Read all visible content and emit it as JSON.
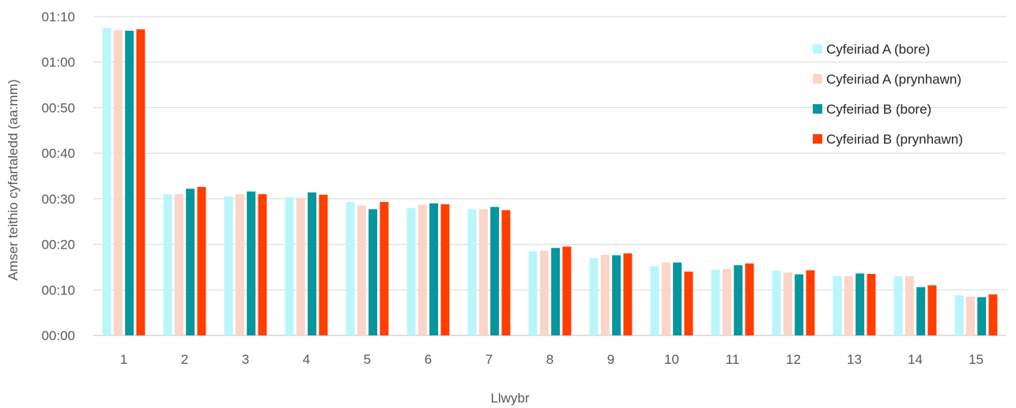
{
  "chart_data": {
    "type": "bar",
    "title": "",
    "xlabel": "Llwybr",
    "ylabel": "Amser teithio cyfartaledd (aa:mm)",
    "y_unit": "minutes",
    "ylim": [
      0,
      70
    ],
    "y_ticks": [
      0,
      10,
      20,
      30,
      40,
      50,
      60,
      70
    ],
    "y_tick_labels": [
      "00:00",
      "00:10",
      "00:20",
      "00:30",
      "00:40",
      "00:50",
      "01:00",
      "01:10"
    ],
    "grid": true,
    "legend_position": "right",
    "categories": [
      "1",
      "2",
      "3",
      "4",
      "5",
      "6",
      "7",
      "8",
      "9",
      "10",
      "11",
      "12",
      "13",
      "14",
      "15"
    ],
    "series": [
      {
        "name": "Cyfeiriad A (bore)",
        "color": "#B9F6F9",
        "values": [
          67.5,
          31,
          30.5,
          30.3,
          29.3,
          28,
          27.7,
          18.5,
          17,
          15.2,
          14.4,
          14.2,
          13.1,
          13,
          8.8
        ]
      },
      {
        "name": "Cyfeiriad A (prynhawn)",
        "color": "#FAD5C8",
        "values": [
          67,
          31,
          31,
          30.2,
          28.5,
          28.7,
          27.7,
          18.6,
          17.7,
          16,
          14.6,
          13.8,
          13,
          13,
          8.5
        ]
      },
      {
        "name": "Cyfeiriad B (bore)",
        "color": "#07969E",
        "values": [
          66.9,
          32.2,
          31.6,
          31.4,
          27.7,
          29,
          28.2,
          19.2,
          17.6,
          16,
          15.4,
          13.4,
          13.6,
          10.6,
          8.4
        ]
      },
      {
        "name": "Cyfeiriad B (prynhawn)",
        "color": "#FF3E00",
        "values": [
          67.2,
          32.6,
          31,
          30.9,
          29.3,
          28.8,
          27.5,
          19.5,
          18,
          14,
          15.8,
          14.3,
          13.5,
          11,
          9
        ]
      }
    ]
  }
}
